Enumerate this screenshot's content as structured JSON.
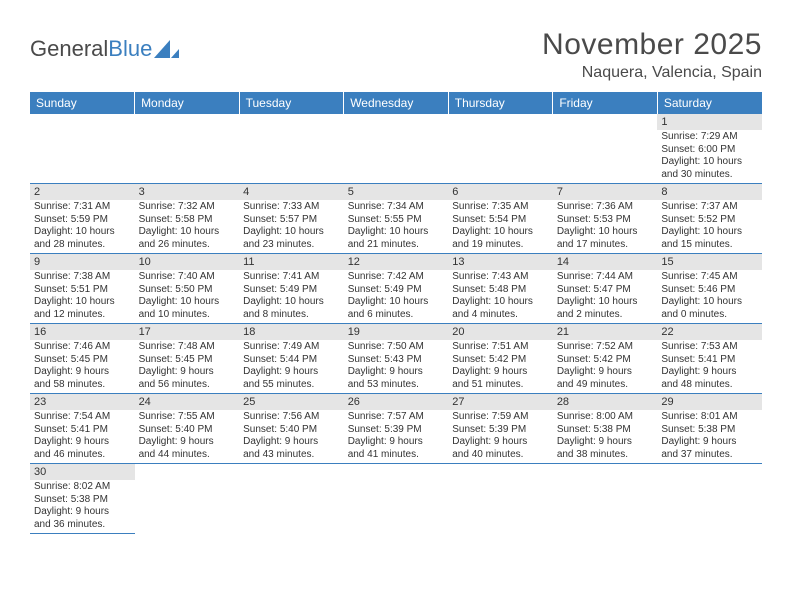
{
  "logo": {
    "text_a": "General",
    "text_b": "Blue",
    "sail_color": "#3b7fbf"
  },
  "header": {
    "title": "November 2025",
    "location": "Naquera, Valencia, Spain"
  },
  "colors": {
    "header_bg": "#3b7fbf",
    "header_text": "#ffffff",
    "daynum_bg": "#e5e5e5",
    "border": "#3b7fbf",
    "text": "#333333"
  },
  "day_headers": [
    "Sunday",
    "Monday",
    "Tuesday",
    "Wednesday",
    "Thursday",
    "Friday",
    "Saturday"
  ],
  "weeks": [
    [
      null,
      null,
      null,
      null,
      null,
      null,
      {
        "n": "1",
        "sr": "7:29 AM",
        "ss": "6:00 PM",
        "dl": "10 hours and 30 minutes."
      }
    ],
    [
      {
        "n": "2",
        "sr": "7:31 AM",
        "ss": "5:59 PM",
        "dl": "10 hours and 28 minutes."
      },
      {
        "n": "3",
        "sr": "7:32 AM",
        "ss": "5:58 PM",
        "dl": "10 hours and 26 minutes."
      },
      {
        "n": "4",
        "sr": "7:33 AM",
        "ss": "5:57 PM",
        "dl": "10 hours and 23 minutes."
      },
      {
        "n": "5",
        "sr": "7:34 AM",
        "ss": "5:55 PM",
        "dl": "10 hours and 21 minutes."
      },
      {
        "n": "6",
        "sr": "7:35 AM",
        "ss": "5:54 PM",
        "dl": "10 hours and 19 minutes."
      },
      {
        "n": "7",
        "sr": "7:36 AM",
        "ss": "5:53 PM",
        "dl": "10 hours and 17 minutes."
      },
      {
        "n": "8",
        "sr": "7:37 AM",
        "ss": "5:52 PM",
        "dl": "10 hours and 15 minutes."
      }
    ],
    [
      {
        "n": "9",
        "sr": "7:38 AM",
        "ss": "5:51 PM",
        "dl": "10 hours and 12 minutes."
      },
      {
        "n": "10",
        "sr": "7:40 AM",
        "ss": "5:50 PM",
        "dl": "10 hours and 10 minutes."
      },
      {
        "n": "11",
        "sr": "7:41 AM",
        "ss": "5:49 PM",
        "dl": "10 hours and 8 minutes."
      },
      {
        "n": "12",
        "sr": "7:42 AM",
        "ss": "5:49 PM",
        "dl": "10 hours and 6 minutes."
      },
      {
        "n": "13",
        "sr": "7:43 AM",
        "ss": "5:48 PM",
        "dl": "10 hours and 4 minutes."
      },
      {
        "n": "14",
        "sr": "7:44 AM",
        "ss": "5:47 PM",
        "dl": "10 hours and 2 minutes."
      },
      {
        "n": "15",
        "sr": "7:45 AM",
        "ss": "5:46 PM",
        "dl": "10 hours and 0 minutes."
      }
    ],
    [
      {
        "n": "16",
        "sr": "7:46 AM",
        "ss": "5:45 PM",
        "dl": "9 hours and 58 minutes."
      },
      {
        "n": "17",
        "sr": "7:48 AM",
        "ss": "5:45 PM",
        "dl": "9 hours and 56 minutes."
      },
      {
        "n": "18",
        "sr": "7:49 AM",
        "ss": "5:44 PM",
        "dl": "9 hours and 55 minutes."
      },
      {
        "n": "19",
        "sr": "7:50 AM",
        "ss": "5:43 PM",
        "dl": "9 hours and 53 minutes."
      },
      {
        "n": "20",
        "sr": "7:51 AM",
        "ss": "5:42 PM",
        "dl": "9 hours and 51 minutes."
      },
      {
        "n": "21",
        "sr": "7:52 AM",
        "ss": "5:42 PM",
        "dl": "9 hours and 49 minutes."
      },
      {
        "n": "22",
        "sr": "7:53 AM",
        "ss": "5:41 PM",
        "dl": "9 hours and 48 minutes."
      }
    ],
    [
      {
        "n": "23",
        "sr": "7:54 AM",
        "ss": "5:41 PM",
        "dl": "9 hours and 46 minutes."
      },
      {
        "n": "24",
        "sr": "7:55 AM",
        "ss": "5:40 PM",
        "dl": "9 hours and 44 minutes."
      },
      {
        "n": "25",
        "sr": "7:56 AM",
        "ss": "5:40 PM",
        "dl": "9 hours and 43 minutes."
      },
      {
        "n": "26",
        "sr": "7:57 AM",
        "ss": "5:39 PM",
        "dl": "9 hours and 41 minutes."
      },
      {
        "n": "27",
        "sr": "7:59 AM",
        "ss": "5:39 PM",
        "dl": "9 hours and 40 minutes."
      },
      {
        "n": "28",
        "sr": "8:00 AM",
        "ss": "5:38 PM",
        "dl": "9 hours and 38 minutes."
      },
      {
        "n": "29",
        "sr": "8:01 AM",
        "ss": "5:38 PM",
        "dl": "9 hours and 37 minutes."
      }
    ],
    [
      {
        "n": "30",
        "sr": "8:02 AM",
        "ss": "5:38 PM",
        "dl": "9 hours and 36 minutes."
      },
      null,
      null,
      null,
      null,
      null,
      null
    ]
  ],
  "labels": {
    "sunrise": "Sunrise: ",
    "sunset": "Sunset: ",
    "daylight": "Daylight: "
  }
}
